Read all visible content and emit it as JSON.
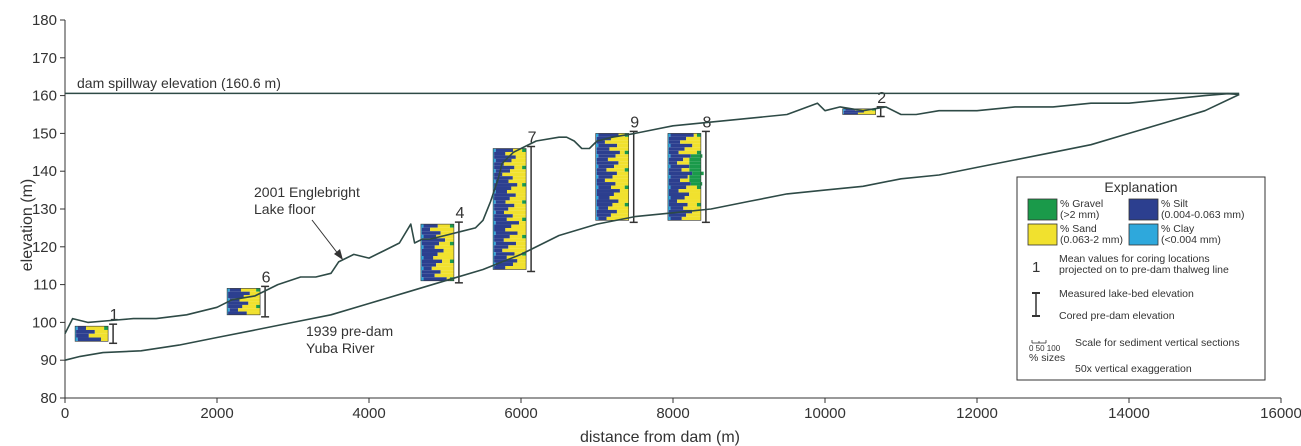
{
  "chart_data": {
    "type": "line",
    "xlabel": "distance from dam (m)",
    "ylabel": "elevation (m)",
    "xlim": [
      0,
      16000
    ],
    "ylim": [
      80,
      180
    ],
    "xticks": [
      0,
      2000,
      4000,
      6000,
      8000,
      10000,
      12000,
      14000,
      16000
    ],
    "yticks": [
      80,
      90,
      100,
      110,
      120,
      130,
      140,
      150,
      160,
      170,
      180
    ],
    "grid": false,
    "colors": {
      "line": "#2e4a46",
      "gravel": "#1a9a4a",
      "silt": "#2c3f8f",
      "sand": "#f1e12e",
      "clay": "#2ea8dc",
      "axis": "#333333"
    },
    "spillway": {
      "y": 160.6,
      "label": "dam spillway elevation (160.6 m)"
    },
    "series": [
      {
        "name": "2001 Englebright Lake floor",
        "x": [
          0,
          100,
          300,
          600,
          900,
          1200,
          1600,
          2000,
          2200,
          2500,
          2800,
          3100,
          3300,
          3500,
          3600,
          3800,
          4000,
          4200,
          4400,
          4550,
          4600,
          4700,
          4800,
          5000,
          5200,
          5400,
          5500,
          5600,
          5700,
          5750,
          5900,
          6000,
          6200,
          6500,
          6600,
          6700,
          6800,
          6900,
          7000,
          7200,
          7500,
          8000,
          8500,
          9000,
          9500,
          9900,
          10000,
          10200,
          10500,
          10800,
          11000,
          11200,
          11500,
          12000,
          12500,
          13000,
          13500,
          14000,
          14500,
          15000,
          15300,
          15450
        ],
        "y": [
          97,
          101,
          100,
          100.5,
          101,
          101,
          102,
          104,
          106,
          107,
          110,
          112,
          112,
          113,
          116,
          118,
          117,
          119,
          121,
          126,
          121,
          122,
          122,
          123,
          124,
          125,
          127,
          132,
          138,
          142,
          145,
          146,
          148,
          149,
          149,
          148,
          146,
          146,
          148,
          149,
          150,
          152,
          153,
          154,
          155,
          158,
          156,
          157,
          156,
          157,
          155,
          155,
          156,
          156,
          157,
          157,
          158,
          158,
          159,
          160,
          160.5,
          160.3
        ]
      },
      {
        "name": "1939 pre-dam Yuba River",
        "x": [
          0,
          200,
          500,
          1000,
          1500,
          2000,
          2500,
          3000,
          3500,
          4000,
          4500,
          5000,
          5500,
          6000,
          6500,
          7000,
          7500,
          8000,
          8500,
          9000,
          9500,
          10000,
          10500,
          11000,
          11500,
          12000,
          12500,
          13000,
          13500,
          14000,
          14500,
          15000,
          15450
        ],
        "y": [
          90,
          91,
          92,
          92.5,
          94,
          96,
          98,
          100,
          102,
          105,
          108,
          111,
          114,
          118,
          123,
          126,
          128,
          129,
          130,
          132,
          134,
          135,
          136,
          138,
          139,
          141,
          143,
          145,
          147,
          150,
          153,
          156,
          160.3
        ]
      }
    ],
    "cores": [
      {
        "id": "1",
        "x": 350,
        "top": 99,
        "bottom": 95
      },
      {
        "id": "6",
        "x": 2350,
        "top": 109,
        "bottom": 102
      },
      {
        "id": "4",
        "x": 4900,
        "top": 126,
        "bottom": 111
      },
      {
        "id": "7",
        "x": 5850,
        "top": 146,
        "bottom": 114
      },
      {
        "id": "9",
        "x": 7200,
        "top": 150,
        "bottom": 127
      },
      {
        "id": "8",
        "x": 8150,
        "top": 150,
        "bottom": 127
      },
      {
        "id": "2",
        "x": 10450,
        "top": 156.5,
        "bottom": 155
      }
    ],
    "annotations": {
      "lake_floor": [
        "2001 Englebright",
        "Lake floor"
      ],
      "pre_dam": [
        "1939 pre-dam",
        "Yuba River"
      ]
    },
    "legend": {
      "position": "right",
      "title": "Explanation",
      "gravel": [
        "% Gravel",
        "(>2 mm)"
      ],
      "silt": [
        "% Silt",
        "(0.004-0.063 mm)"
      ],
      "sand": [
        "% Sand",
        "(0.063-2 mm)"
      ],
      "clay": [
        "% Clay",
        "(<0.004 mm)"
      ],
      "num_symbol": "1",
      "mean_values": [
        "Mean values for coring locations",
        "projected on to pre-dam thalweg line"
      ],
      "measured": "Measured lake-bed elevation",
      "cored": "Cored pre-dam elevation",
      "scale_ticks": "0  50 100",
      "scale_units": "% sizes",
      "scale_label": "Scale for sediment vertical sections",
      "exaggeration": "50x vertical exaggeration"
    }
  }
}
